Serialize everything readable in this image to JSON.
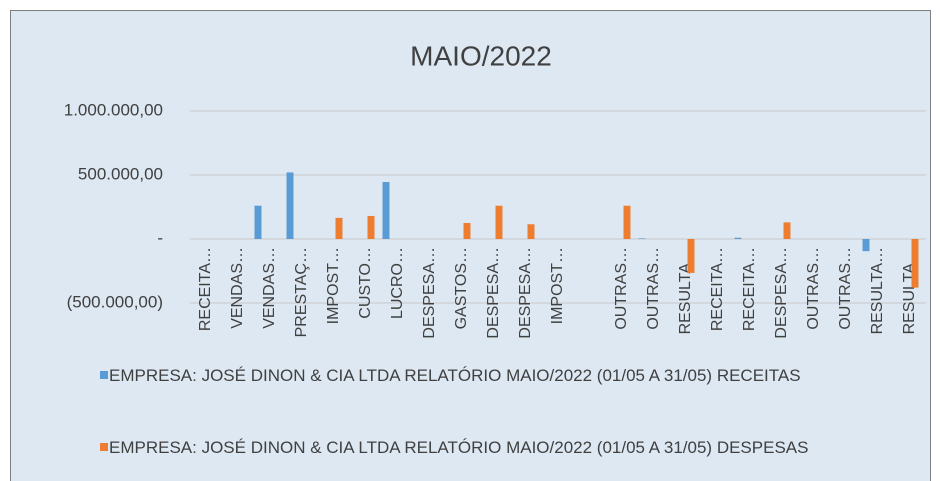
{
  "chart_data": {
    "type": "bar",
    "title": "MAIO/2022",
    "categories": [
      "RECEITA…",
      "VENDAS…",
      "VENDAS…",
      "PRESTAÇ…",
      "IMPOST…",
      "CUSTO…",
      "LUCRO…",
      "DESPESA…",
      "GASTOS…",
      "DESPESA…",
      "DESPESA…",
      "IMPOST…",
      null,
      "OUTRAS…",
      "OUTRAS…",
      "RESULTA…",
      "RECEITA…",
      "RECEITA…",
      "DESPESA…",
      "OUTRAS…",
      "OUTRAS…",
      "RESULTA…",
      "RESULTA…"
    ],
    "series": [
      {
        "name": "EMPRESA: JOSÉ DINON & CIA LTDA RELATÓRIO MAIO/2022 (01/05 A 31/05) RECEITAS",
        "color": "#5b9bd5",
        "values": [
          0,
          0,
          260000,
          520000,
          0,
          0,
          445000,
          0,
          0,
          0,
          0,
          0,
          0,
          0,
          5000,
          0,
          0,
          10000,
          0,
          0,
          0,
          -95000,
          0
        ]
      },
      {
        "name": "EMPRESA: JOSÉ DINON & CIA LTDA RELATÓRIO MAIO/2022 (01/05 A 31/05) DESPESAS",
        "color": "#ed7d31",
        "values": [
          0,
          0,
          0,
          0,
          165000,
          180000,
          0,
          0,
          125000,
          260000,
          115000,
          0,
          0,
          260000,
          0,
          -265000,
          0,
          0,
          130000,
          0,
          0,
          0,
          -380000
        ]
      }
    ],
    "ylim": [
      -500000,
      1000000
    ],
    "yticks": [
      {
        "value": -500000,
        "label": "(500.000,00)"
      },
      {
        "value": 0,
        "label": "-"
      },
      {
        "value": 500000,
        "label": "500.000,00"
      },
      {
        "value": 1000000,
        "label": "1.000.000,00"
      }
    ],
    "grid": true,
    "legend": "bottom"
  }
}
